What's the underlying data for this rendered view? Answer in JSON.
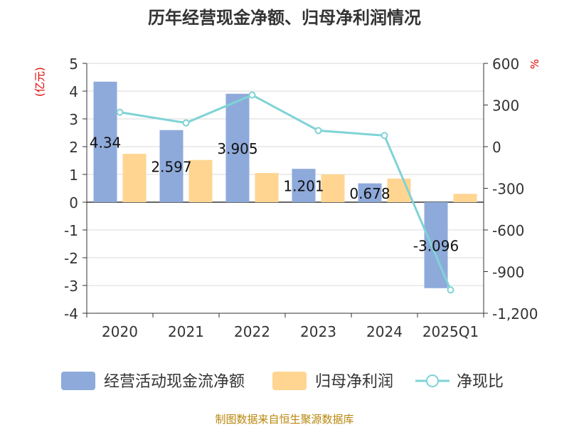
{
  "chart_data": {
    "type": "bar",
    "title": "历年经营现金净额、归母净利润情况",
    "categories": [
      "2020",
      "2021",
      "2022",
      "2023",
      "2024",
      "2025Q1"
    ],
    "left_axis": {
      "unit_label": "(亿元)",
      "ticks": [
        "5",
        "4",
        "3",
        "2",
        "1",
        "0",
        "-1",
        "-2",
        "-3",
        "-4"
      ],
      "min": -4,
      "max": 5
    },
    "right_axis": {
      "unit_label": "%",
      "ticks": [
        "600",
        "300",
        "0",
        "-300",
        "-600",
        "-900",
        "-1,200"
      ],
      "min": -1200,
      "max": 600
    },
    "grid": true,
    "legend_position": "bottom",
    "series": [
      {
        "name": "经营活动现金流净额",
        "kind": "bar",
        "axis": "left",
        "color": "#8eaadb",
        "values": [
          4.34,
          2.597,
          3.905,
          1.201,
          0.678,
          -3.096
        ],
        "labels": [
          "4.34",
          "2.597",
          "3.905",
          "1.201",
          "0.678",
          "-3.096"
        ]
      },
      {
        "name": "归母净利润",
        "kind": "bar",
        "axis": "left",
        "color": "#ffd591",
        "values": [
          1.74,
          1.52,
          1.05,
          1.0,
          0.85,
          0.3
        ]
      },
      {
        "name": "净现比",
        "kind": "line",
        "axis": "right",
        "color": "#7fd3d5",
        "values": [
          248,
          171,
          372,
          116,
          80,
          -1032
        ]
      }
    ],
    "source": "制图数据来自恒生聚源数据库"
  }
}
